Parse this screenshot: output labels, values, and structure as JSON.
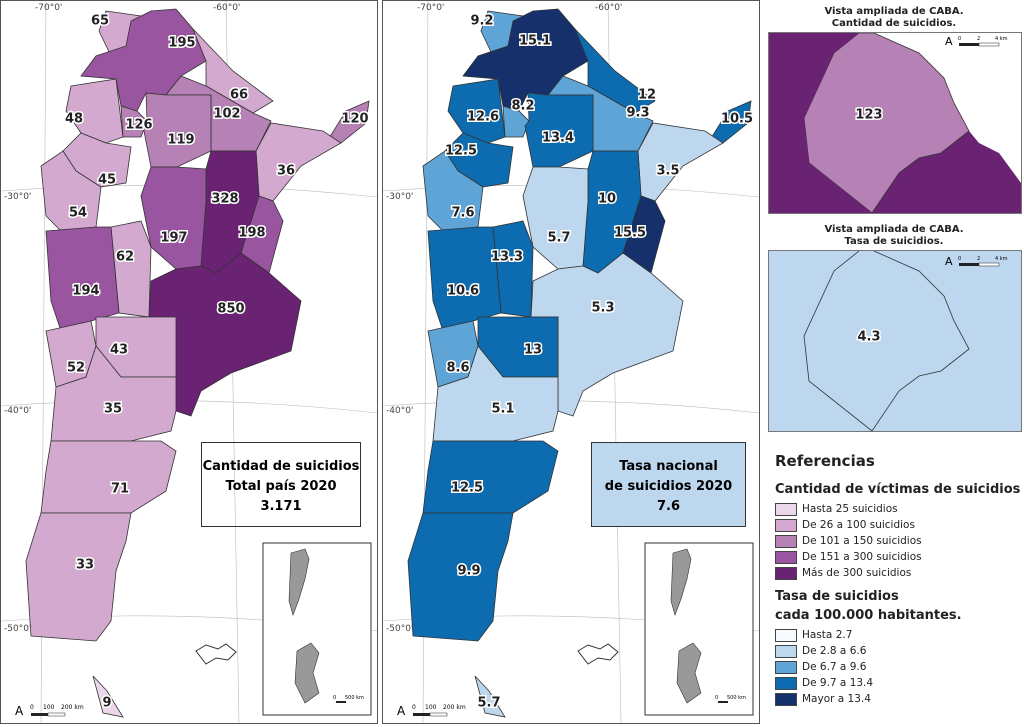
{
  "graticule": {
    "lon": [
      "-70°0'",
      "-60°0'"
    ],
    "lat": [
      "-30°0'",
      "-40°0'",
      "-50°0'"
    ]
  },
  "map_count": {
    "values": [
      65,
      195,
      66,
      102,
      120,
      36,
      126,
      48,
      119,
      45,
      54,
      328,
      198,
      197,
      62,
      194,
      850,
      43,
      52,
      35,
      71,
      33,
      9
    ],
    "box": {
      "line1": "Cantidad de suicidios",
      "line2": "Total país 2020",
      "line3": "3.171"
    }
  },
  "map_rate": {
    "values": [
      "9.2",
      "15.1",
      "12",
      "9.3",
      "10.5",
      "3.5",
      "8.2",
      "12.6",
      "13.4",
      "12.5",
      "7.6",
      "10",
      "15.5",
      "5.7",
      "13.3",
      "10.6",
      "5.3",
      "13",
      "8.6",
      "5.1",
      "12.5",
      "9.9",
      "5.7"
    ],
    "box": {
      "line1": "Tasa nacional",
      "line2": "de suicidios 2020",
      "line3": "7.6"
    }
  },
  "scale": {
    "main": [
      "0",
      "100",
      "200 km"
    ],
    "inset": [
      "0",
      "500 km"
    ],
    "caba": [
      "0",
      "2",
      "4 km"
    ]
  },
  "caba_count": {
    "title1": "Vista ampliada de CABA.",
    "title2": "Cantidad de suicidios.",
    "value": "123"
  },
  "caba_rate": {
    "title1": "Vista ampliada de CABA.",
    "title2": "Tasa de suicidios.",
    "value": "4.3"
  },
  "legend": {
    "title": "Referencias",
    "count_title": "Cantidad de víctimas de suicidios",
    "count_items": [
      {
        "label": "Hasta 25 suicidios",
        "max": 25,
        "color": "#ecd7ea"
      },
      {
        "label": "De 26 a 100 suicidios",
        "max": 100,
        "color": "#d3a9cf"
      },
      {
        "label": "De 101 a 150 suicidios",
        "max": 150,
        "color": "#b681b4"
      },
      {
        "label": "De 151 a 300 suicidios",
        "max": 300,
        "color": "#9a55a0"
      },
      {
        "label": "Más de 300 suicidios",
        "max": 1000000000.0,
        "color": "#6a2272"
      }
    ],
    "rate_title1": "Tasa de suicidios",
    "rate_title2": "cada 100.000 habitantes.",
    "rate_items": [
      {
        "label": "Hasta 2.7",
        "max": 2.7,
        "color": "#f7fbff"
      },
      {
        "label": "De 2.8 a 6.6",
        "max": 6.6,
        "color": "#bdd7ee"
      },
      {
        "label": "De 6.7 a 9.6",
        "max": 9.6,
        "color": "#5fa4d6"
      },
      {
        "label": "De 9.7 a 13.4",
        "max": 13.4,
        "color": "#0d6cb0"
      },
      {
        "label": "Mayor a 13.4",
        "max": 1000000000.0,
        "color": "#16306b"
      }
    ]
  }
}
